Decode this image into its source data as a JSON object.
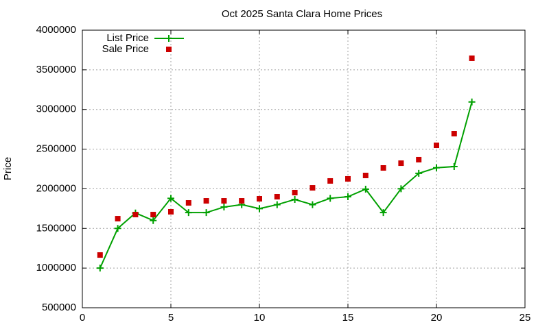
{
  "chart_data": {
    "type": "line",
    "title": "Oct 2025 Santa Clara Home Prices",
    "ylabel": "Price",
    "xlim": [
      0,
      25
    ],
    "xticks": [
      0,
      5,
      10,
      15,
      20,
      25
    ],
    "ylim": [
      500000,
      4000000
    ],
    "yticks": [
      500000,
      1000000,
      1500000,
      2000000,
      2500000,
      3000000,
      3500000,
      4000000
    ],
    "grid": true,
    "legend": "top-left",
    "series": [
      {
        "name": "List Price",
        "color": "#00a000",
        "style": "linespoints",
        "marker": "plus",
        "x": [
          1,
          2,
          3,
          4,
          5,
          6,
          7,
          8,
          9,
          10,
          11,
          12,
          13,
          14,
          15,
          16,
          17,
          18,
          19,
          20,
          21,
          22
        ],
        "values": [
          1000000,
          1500000,
          1695000,
          1600000,
          1880000,
          1700000,
          1700000,
          1770000,
          1800000,
          1750000,
          1800000,
          1865000,
          1800000,
          1880000,
          1900000,
          1995000,
          1700000,
          2000000,
          2195000,
          2265000,
          2280000,
          3095000
        ]
      },
      {
        "name": "Sale Price",
        "color": "#cc0000",
        "style": "points",
        "marker": "square",
        "x": [
          1,
          2,
          3,
          4,
          5,
          6,
          7,
          8,
          9,
          10,
          11,
          12,
          13,
          14,
          15,
          16,
          17,
          18,
          19,
          20,
          21,
          22
        ],
        "values": [
          1165000,
          1623000,
          1675000,
          1675000,
          1710000,
          1822000,
          1848000,
          1848000,
          1848000,
          1874000,
          1900000,
          1952000,
          2012000,
          2099000,
          2125000,
          2168000,
          2263000,
          2323000,
          2367000,
          2548000,
          2695000,
          3646000
        ]
      }
    ]
  }
}
